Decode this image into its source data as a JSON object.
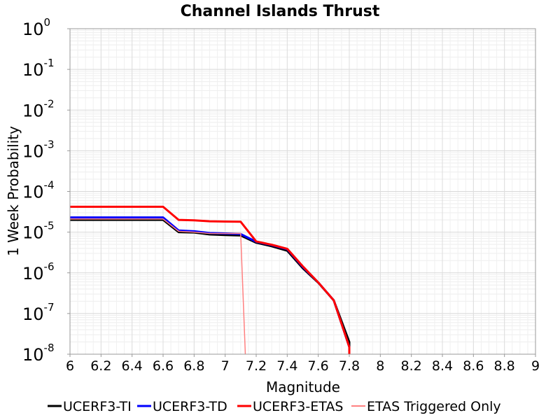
{
  "chart_data": {
    "type": "line",
    "title": "Channel Islands Thrust",
    "xlabel": "Magnitude",
    "ylabel": "1 Week Probability",
    "xlim": [
      6,
      9
    ],
    "ylim": [
      1e-08,
      1
    ],
    "yscale": "log",
    "grid": true,
    "legend_position": "bottom",
    "x_ticks": [
      "6",
      "6.2",
      "6.4",
      "6.6",
      "6.8",
      "7",
      "7.2",
      "7.4",
      "7.6",
      "7.8",
      "8",
      "8.2",
      "8.4",
      "8.6",
      "8.8",
      "9"
    ],
    "y_ticks": [
      {
        "base": "10",
        "exp": "0"
      },
      {
        "base": "10",
        "exp": "-1"
      },
      {
        "base": "10",
        "exp": "-2"
      },
      {
        "base": "10",
        "exp": "-3"
      },
      {
        "base": "10",
        "exp": "-4"
      },
      {
        "base": "10",
        "exp": "-5"
      },
      {
        "base": "10",
        "exp": "-6"
      },
      {
        "base": "10",
        "exp": "-7"
      },
      {
        "base": "10",
        "exp": "-8"
      }
    ],
    "series": [
      {
        "name": "UCERF3-TI",
        "color": "#000000",
        "width": 3,
        "x": [
          6.0,
          6.6,
          6.7,
          6.8,
          6.9,
          7.0,
          7.1,
          7.2,
          7.3,
          7.4,
          7.5,
          7.6,
          7.7,
          7.8,
          7.8
        ],
        "y": [
          2e-05,
          2e-05,
          1e-05,
          9.8e-06,
          8.8e-06,
          8.5e-06,
          8.3e-06,
          5.5e-06,
          4.5e-06,
          3.5e-06,
          1.3e-06,
          5.7e-07,
          2.1e-07,
          2e-08,
          1e-08
        ]
      },
      {
        "name": "UCERF3-TD",
        "color": "#0000ff",
        "width": 3,
        "x": [
          6.0,
          6.6,
          6.7,
          6.8,
          6.9,
          7.0,
          7.1,
          7.2,
          7.3,
          7.4,
          7.5,
          7.6,
          7.7,
          7.8,
          7.8
        ],
        "y": [
          2.3e-05,
          2.3e-05,
          1.1e-05,
          1.05e-05,
          9.5e-06,
          9.3e-06,
          9e-06,
          5.8e-06,
          4.8e-06,
          3.8e-06,
          1.4e-06,
          5.8e-07,
          2.1e-07,
          1.5e-08,
          1e-08
        ]
      },
      {
        "name": "UCERF3-ETAS",
        "color": "#ff0000",
        "width": 3,
        "x": [
          6.0,
          6.6,
          6.7,
          6.8,
          6.9,
          7.0,
          7.1,
          7.2,
          7.3,
          7.4,
          7.5,
          7.6,
          7.7,
          7.8,
          7.8
        ],
        "y": [
          4.2e-05,
          4.2e-05,
          2e-05,
          1.95e-05,
          1.85e-05,
          1.82e-05,
          1.8e-05,
          5.9e-06,
          4.9e-06,
          3.9e-06,
          1.45e-06,
          5.8e-07,
          2.1e-07,
          1.5e-08,
          1e-08
        ]
      },
      {
        "name": "ETAS Triggered Only",
        "color": "#ff8080",
        "width": 1.5,
        "x": [
          6.0,
          6.6,
          6.7,
          6.8,
          6.9,
          7.0,
          7.1,
          7.13
        ],
        "y": [
          2.1e-05,
          2.1e-05,
          1.05e-05,
          1e-05,
          9.3e-06,
          9.3e-06,
          9.3e-06,
          1e-08
        ]
      }
    ]
  }
}
